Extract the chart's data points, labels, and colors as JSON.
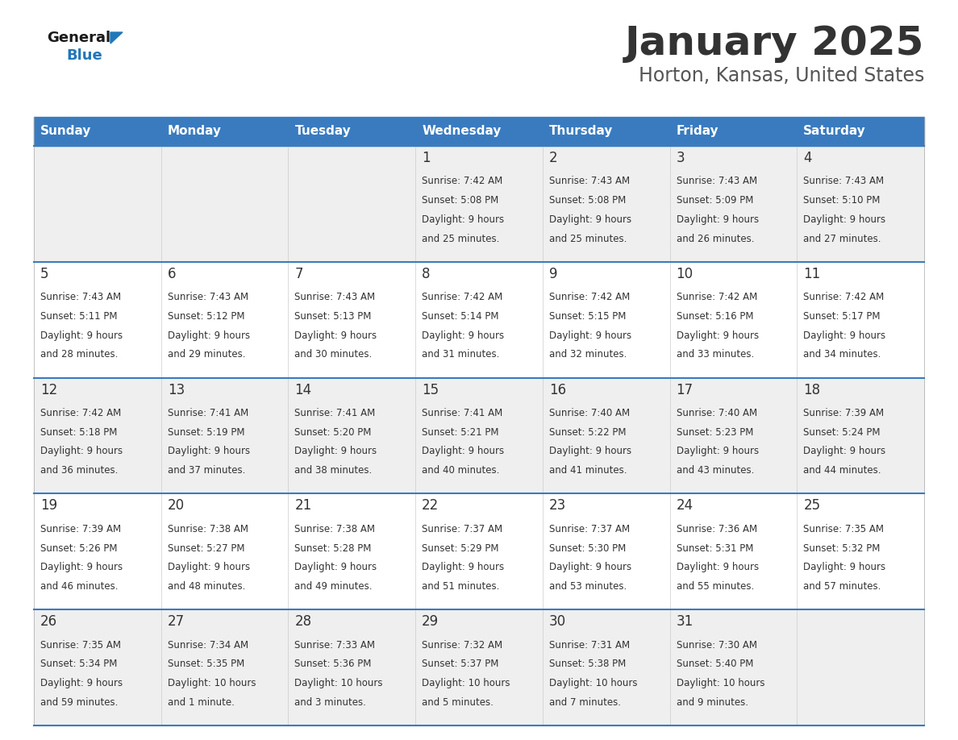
{
  "title": "January 2025",
  "subtitle": "Horton, Kansas, United States",
  "days_of_week": [
    "Sunday",
    "Monday",
    "Tuesday",
    "Wednesday",
    "Thursday",
    "Friday",
    "Saturday"
  ],
  "header_bg": "#3A7BBF",
  "header_text": "#FFFFFF",
  "cell_bg_odd": "#EFEFEF",
  "cell_bg_even": "#FFFFFF",
  "separator_color": "#3A7BBF",
  "text_color": "#333333",
  "title_color": "#333333",
  "subtitle_color": "#555555",
  "logo_general_color": "#1a1a1a",
  "logo_blue_color": "#2277BB",
  "logo_triangle_color": "#2277BB",
  "calendar_data": [
    [
      null,
      null,
      null,
      {
        "day": 1,
        "sunrise": "7:42 AM",
        "sunset": "5:08 PM",
        "daylight": "9 hours",
        "daylight2": "and 25 minutes."
      },
      {
        "day": 2,
        "sunrise": "7:43 AM",
        "sunset": "5:08 PM",
        "daylight": "9 hours",
        "daylight2": "and 25 minutes."
      },
      {
        "day": 3,
        "sunrise": "7:43 AM",
        "sunset": "5:09 PM",
        "daylight": "9 hours",
        "daylight2": "and 26 minutes."
      },
      {
        "day": 4,
        "sunrise": "7:43 AM",
        "sunset": "5:10 PM",
        "daylight": "9 hours",
        "daylight2": "and 27 minutes."
      }
    ],
    [
      {
        "day": 5,
        "sunrise": "7:43 AM",
        "sunset": "5:11 PM",
        "daylight": "9 hours",
        "daylight2": "and 28 minutes."
      },
      {
        "day": 6,
        "sunrise": "7:43 AM",
        "sunset": "5:12 PM",
        "daylight": "9 hours",
        "daylight2": "and 29 minutes."
      },
      {
        "day": 7,
        "sunrise": "7:43 AM",
        "sunset": "5:13 PM",
        "daylight": "9 hours",
        "daylight2": "and 30 minutes."
      },
      {
        "day": 8,
        "sunrise": "7:42 AM",
        "sunset": "5:14 PM",
        "daylight": "9 hours",
        "daylight2": "and 31 minutes."
      },
      {
        "day": 9,
        "sunrise": "7:42 AM",
        "sunset": "5:15 PM",
        "daylight": "9 hours",
        "daylight2": "and 32 minutes."
      },
      {
        "day": 10,
        "sunrise": "7:42 AM",
        "sunset": "5:16 PM",
        "daylight": "9 hours",
        "daylight2": "and 33 minutes."
      },
      {
        "day": 11,
        "sunrise": "7:42 AM",
        "sunset": "5:17 PM",
        "daylight": "9 hours",
        "daylight2": "and 34 minutes."
      }
    ],
    [
      {
        "day": 12,
        "sunrise": "7:42 AM",
        "sunset": "5:18 PM",
        "daylight": "9 hours",
        "daylight2": "and 36 minutes."
      },
      {
        "day": 13,
        "sunrise": "7:41 AM",
        "sunset": "5:19 PM",
        "daylight": "9 hours",
        "daylight2": "and 37 minutes."
      },
      {
        "day": 14,
        "sunrise": "7:41 AM",
        "sunset": "5:20 PM",
        "daylight": "9 hours",
        "daylight2": "and 38 minutes."
      },
      {
        "day": 15,
        "sunrise": "7:41 AM",
        "sunset": "5:21 PM",
        "daylight": "9 hours",
        "daylight2": "and 40 minutes."
      },
      {
        "day": 16,
        "sunrise": "7:40 AM",
        "sunset": "5:22 PM",
        "daylight": "9 hours",
        "daylight2": "and 41 minutes."
      },
      {
        "day": 17,
        "sunrise": "7:40 AM",
        "sunset": "5:23 PM",
        "daylight": "9 hours",
        "daylight2": "and 43 minutes."
      },
      {
        "day": 18,
        "sunrise": "7:39 AM",
        "sunset": "5:24 PM",
        "daylight": "9 hours",
        "daylight2": "and 44 minutes."
      }
    ],
    [
      {
        "day": 19,
        "sunrise": "7:39 AM",
        "sunset": "5:26 PM",
        "daylight": "9 hours",
        "daylight2": "and 46 minutes."
      },
      {
        "day": 20,
        "sunrise": "7:38 AM",
        "sunset": "5:27 PM",
        "daylight": "9 hours",
        "daylight2": "and 48 minutes."
      },
      {
        "day": 21,
        "sunrise": "7:38 AM",
        "sunset": "5:28 PM",
        "daylight": "9 hours",
        "daylight2": "and 49 minutes."
      },
      {
        "day": 22,
        "sunrise": "7:37 AM",
        "sunset": "5:29 PM",
        "daylight": "9 hours",
        "daylight2": "and 51 minutes."
      },
      {
        "day": 23,
        "sunrise": "7:37 AM",
        "sunset": "5:30 PM",
        "daylight": "9 hours",
        "daylight2": "and 53 minutes."
      },
      {
        "day": 24,
        "sunrise": "7:36 AM",
        "sunset": "5:31 PM",
        "daylight": "9 hours",
        "daylight2": "and 55 minutes."
      },
      {
        "day": 25,
        "sunrise": "7:35 AM",
        "sunset": "5:32 PM",
        "daylight": "9 hours",
        "daylight2": "and 57 minutes."
      }
    ],
    [
      {
        "day": 26,
        "sunrise": "7:35 AM",
        "sunset": "5:34 PM",
        "daylight": "9 hours",
        "daylight2": "and 59 minutes."
      },
      {
        "day": 27,
        "sunrise": "7:34 AM",
        "sunset": "5:35 PM",
        "daylight": "10 hours",
        "daylight2": "and 1 minute."
      },
      {
        "day": 28,
        "sunrise": "7:33 AM",
        "sunset": "5:36 PM",
        "daylight": "10 hours",
        "daylight2": "and 3 minutes."
      },
      {
        "day": 29,
        "sunrise": "7:32 AM",
        "sunset": "5:37 PM",
        "daylight": "10 hours",
        "daylight2": "and 5 minutes."
      },
      {
        "day": 30,
        "sunrise": "7:31 AM",
        "sunset": "5:38 PM",
        "daylight": "10 hours",
        "daylight2": "and 7 minutes."
      },
      {
        "day": 31,
        "sunrise": "7:30 AM",
        "sunset": "5:40 PM",
        "daylight": "10 hours",
        "daylight2": "and 9 minutes."
      },
      null
    ]
  ]
}
